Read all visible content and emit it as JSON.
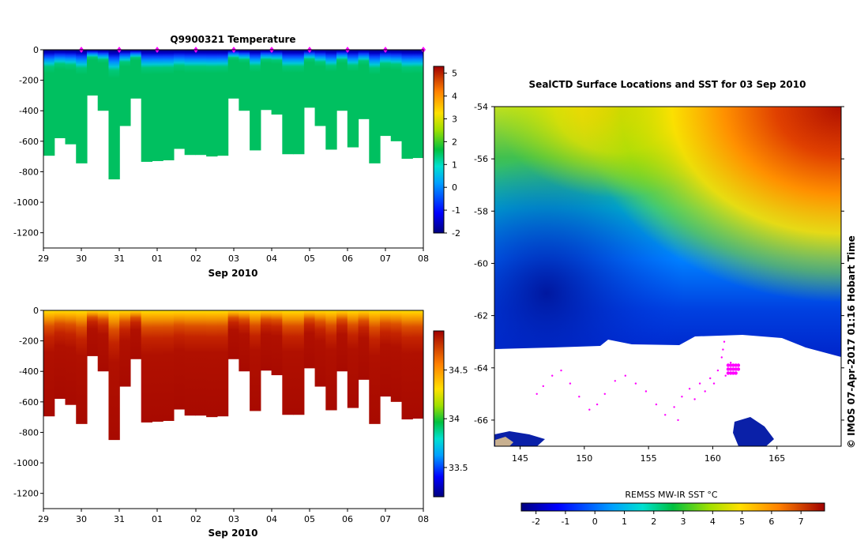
{
  "chart_data": [
    {
      "type": "heatmap",
      "title": "Q9900321  Temperature",
      "xlabel": "Sep 2010",
      "x_ticks": [
        "29",
        "30",
        "31",
        "01",
        "02",
        "03",
        "04",
        "05",
        "06",
        "07",
        "08"
      ],
      "y_ticks": [
        "0",
        "-200",
        "-400",
        "-600",
        "-800",
        "-1000",
        "-1200"
      ],
      "ylim": [
        -1300,
        0
      ],
      "colorbar_ticks": [
        "5",
        "4",
        "3",
        "2",
        "1",
        "0",
        "-1",
        "-2"
      ],
      "colorbar_range": [
        -2,
        5.3
      ],
      "profile_max_depth": [
        -695,
        -580,
        -620,
        -745,
        -300,
        -400,
        -850,
        -500,
        -320,
        -735,
        -730,
        -725,
        -650,
        -690,
        -690,
        -700,
        -695,
        -320,
        -400,
        -660,
        -395,
        -425,
        -685,
        -685,
        -380,
        -500,
        -655,
        -400,
        -640,
        -455,
        -745,
        -565,
        -600,
        -715,
        -710
      ],
      "colormap_temperature": [
        "#00007f",
        "#0000d8",
        "#0a4cff",
        "#00a8ff",
        "#00d0c0",
        "#00c060"
      ]
    },
    {
      "type": "heatmap",
      "title": "",
      "xlabel": "Sep 2010",
      "x_ticks": [
        "29",
        "30",
        "31",
        "01",
        "02",
        "03",
        "04",
        "05",
        "06",
        "07",
        "08"
      ],
      "y_ticks": [
        "0",
        "-200",
        "-400",
        "-600",
        "-800",
        "-1000",
        "-1200"
      ],
      "ylim": [
        -1300,
        0
      ],
      "colorbar_ticks": [
        "34.5",
        "34",
        "33.5"
      ],
      "colorbar_range": [
        33.2,
        34.9
      ]
    },
    {
      "type": "heatmap",
      "title": "SealCTD Surface Locations and SST for 03 Sep 2010",
      "x_ticks": [
        "145",
        "150",
        "155",
        "160",
        "165"
      ],
      "y_ticks": [
        "-54",
        "-56",
        "-58",
        "-60",
        "-62",
        "-64",
        "-66"
      ],
      "xlim": [
        143,
        170
      ],
      "ylim": [
        -67,
        -54
      ],
      "colorbar_label": "REMSS MW-IR SST °C",
      "colorbar_ticks": [
        "-2",
        "-1",
        "0",
        "1",
        "2",
        "3",
        "4",
        "5",
        "6",
        "7"
      ],
      "colorbar_range": [
        -2.5,
        7.8
      ]
    }
  ],
  "watermark": "© IMOS 07-Apr-2017 01:16 Hobart Time",
  "colors": {
    "profile_marker": "#ff00ff",
    "track": "#ff00ff"
  }
}
